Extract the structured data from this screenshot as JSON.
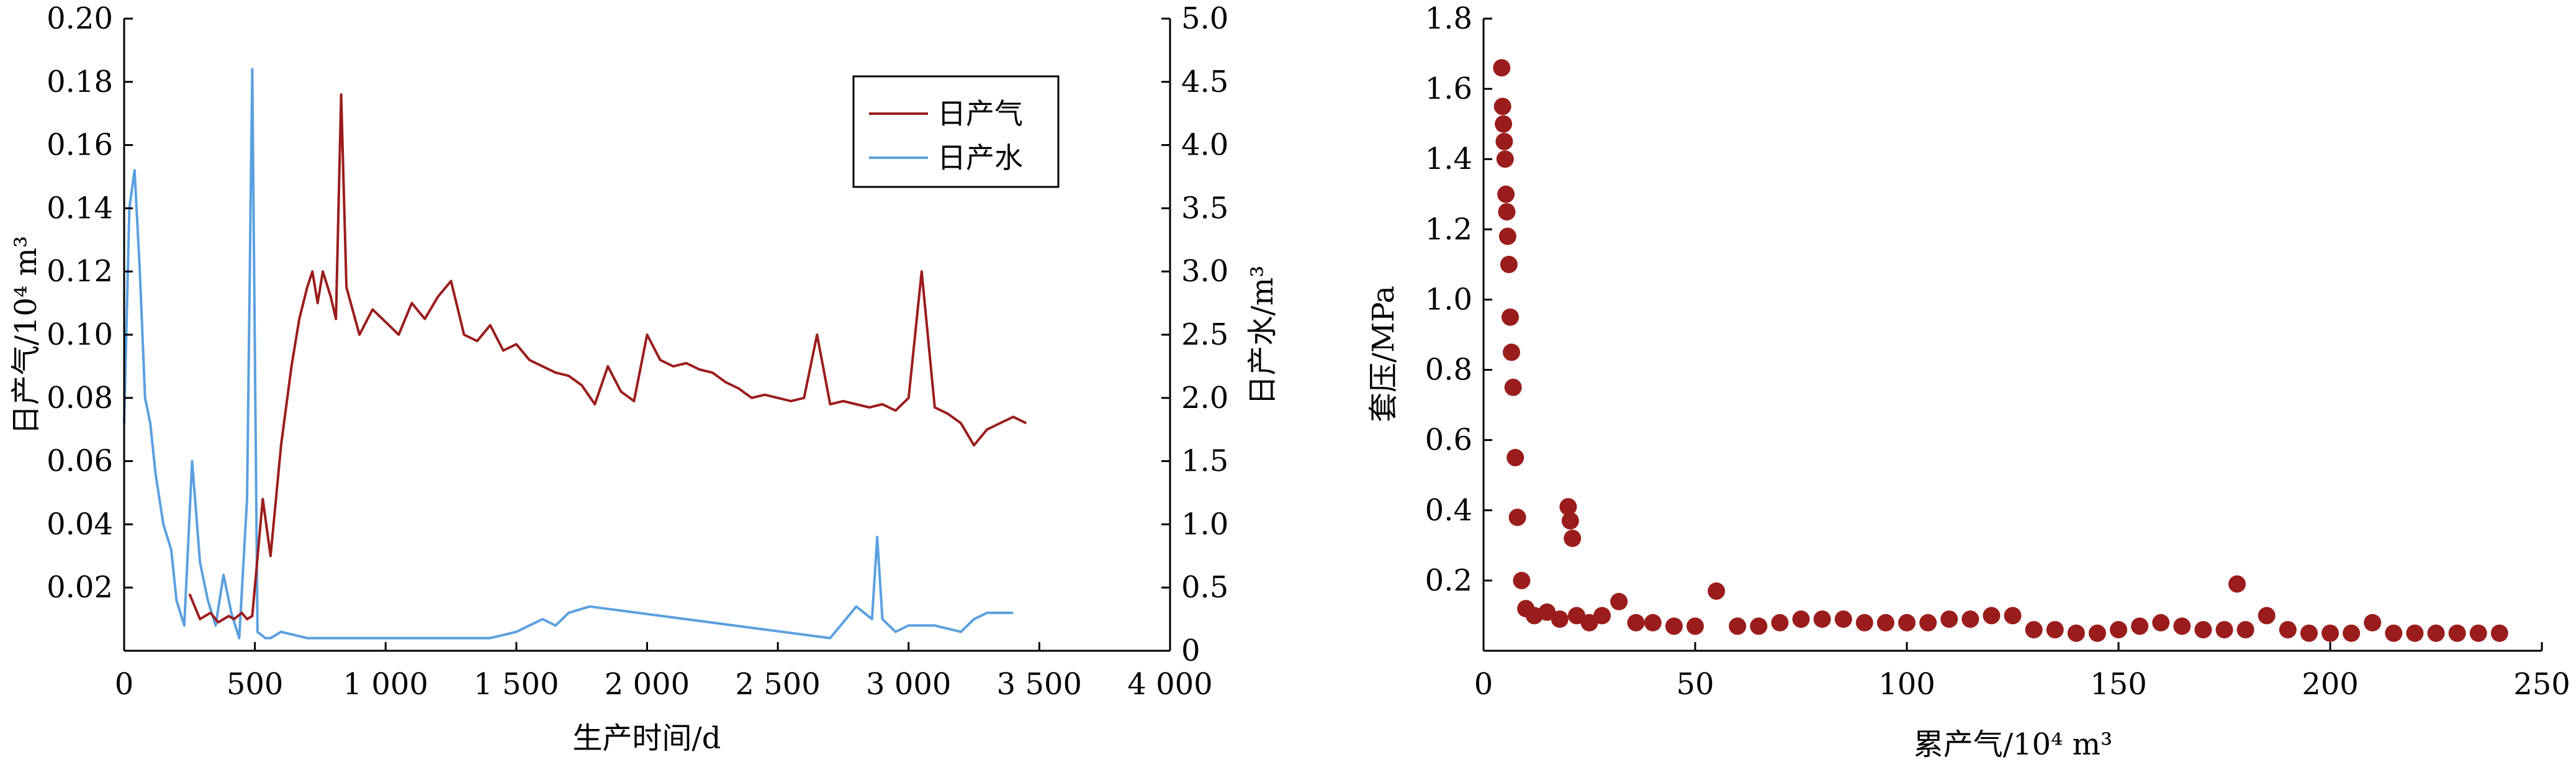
{
  "chart_data": [
    {
      "type": "line",
      "xlabel": "生产时间/d",
      "ylabel_left": "日产气/10⁴ m³",
      "ylabel_right": "日产水/m³",
      "xlim": [
        0,
        4000
      ],
      "ylim_left": [
        0,
        0.2
      ],
      "ylim_right": [
        0,
        5.0
      ],
      "x_ticks": [
        "0",
        "500",
        "1 000",
        "1 500",
        "2 000",
        "2 500",
        "3 000",
        "3 500",
        "4 000"
      ],
      "y_left_ticks": [
        "0.02",
        "0.04",
        "0.06",
        "0.08",
        "0.10",
        "0.12",
        "0.14",
        "0.16",
        "0.18",
        "0.20"
      ],
      "y_right_ticks": [
        "0",
        "0.5",
        "1.0",
        "1.5",
        "2.0",
        "2.5",
        "3.0",
        "3.5",
        "4.0",
        "4.5",
        "5.0"
      ],
      "legend_position": "top-right",
      "colors": {
        "gas": "#9b1c1c",
        "water": "#5aa0e0"
      },
      "series": [
        {
          "name": "日产气",
          "axis": "left",
          "x": [
            250,
            290,
            330,
            360,
            400,
            420,
            450,
            470,
            490,
            530,
            560,
            600,
            640,
            670,
            700,
            720,
            740,
            760,
            790,
            810,
            830,
            850,
            900,
            950,
            1000,
            1050,
            1100,
            1150,
            1200,
            1250,
            1300,
            1350,
            1400,
            1450,
            1500,
            1550,
            1600,
            1650,
            1700,
            1750,
            1800,
            1850,
            1900,
            1950,
            2000,
            2050,
            2100,
            2150,
            2200,
            2250,
            2300,
            2350,
            2400,
            2450,
            2500,
            2550,
            2600,
            2650,
            2700,
            2750,
            2800,
            2850,
            2900,
            2950,
            3000,
            3050,
            3100,
            3150,
            3200,
            3250,
            3300,
            3350,
            3400,
            3450
          ],
          "y": [
            0.018,
            0.01,
            0.012,
            0.009,
            0.011,
            0.01,
            0.012,
            0.01,
            0.011,
            0.048,
            0.03,
            0.065,
            0.09,
            0.105,
            0.115,
            0.12,
            0.11,
            0.12,
            0.112,
            0.105,
            0.176,
            0.115,
            0.1,
            0.108,
            0.104,
            0.1,
            0.11,
            0.105,
            0.112,
            0.117,
            0.1,
            0.098,
            0.103,
            0.095,
            0.097,
            0.092,
            0.09,
            0.088,
            0.087,
            0.084,
            0.078,
            0.09,
            0.082,
            0.079,
            0.1,
            0.092,
            0.09,
            0.091,
            0.089,
            0.088,
            0.085,
            0.083,
            0.08,
            0.081,
            0.08,
            0.079,
            0.08,
            0.1,
            0.078,
            0.079,
            0.078,
            0.077,
            0.078,
            0.076,
            0.08,
            0.12,
            0.077,
            0.075,
            0.072,
            0.065,
            0.07,
            0.072,
            0.074,
            0.072
          ]
        },
        {
          "name": "日产水",
          "axis": "right",
          "x": [
            0,
            20,
            40,
            60,
            80,
            100,
            120,
            150,
            180,
            200,
            230,
            260,
            290,
            320,
            350,
            380,
            410,
            440,
            470,
            490,
            510,
            540,
            560,
            600,
            700,
            800,
            900,
            1000,
            1100,
            1200,
            1300,
            1400,
            1500,
            1550,
            1600,
            1650,
            1700,
            1780,
            2700,
            2800,
            2860,
            2880,
            2900,
            2950,
            3000,
            3050,
            3100,
            3200,
            3250,
            3300,
            3400
          ],
          "y": [
            1.8,
            3.5,
            3.8,
            3.0,
            2.0,
            1.8,
            1.4,
            1.0,
            0.8,
            0.4,
            0.2,
            1.5,
            0.7,
            0.4,
            0.2,
            0.6,
            0.3,
            0.1,
            1.2,
            4.6,
            0.15,
            0.1,
            0.1,
            0.15,
            0.1,
            0.1,
            0.1,
            0.1,
            0.1,
            0.1,
            0.1,
            0.1,
            0.15,
            0.2,
            0.25,
            0.2,
            0.3,
            0.35,
            0.1,
            0.35,
            0.25,
            0.9,
            0.25,
            0.15,
            0.2,
            0.2,
            0.2,
            0.15,
            0.25,
            0.3,
            0.3
          ]
        }
      ]
    },
    {
      "type": "scatter",
      "xlabel": "累产气/10⁴ m³",
      "ylabel": "套压/MPa",
      "xlim": [
        0,
        250
      ],
      "ylim": [
        0,
        1.8
      ],
      "x_ticks": [
        "0",
        "50",
        "100",
        "150",
        "200",
        "250"
      ],
      "y_ticks": [
        "0.2",
        "0.4",
        "0.6",
        "0.8",
        "1.0",
        "1.2",
        "1.4",
        "1.6",
        "1.8"
      ],
      "colors": {
        "points": "#9b1c1c"
      },
      "series": [
        {
          "x": [
            4.3,
            4.5,
            4.7,
            4.9,
            5.1,
            5.3,
            5.5,
            5.7,
            6.0,
            6.3,
            6.6,
            7.0,
            7.5,
            8.0,
            9.0,
            10,
            12,
            15,
            18,
            20,
            20.5,
            21,
            22,
            25,
            28,
            32,
            36,
            40,
            45,
            50,
            55,
            60,
            65,
            70,
            75,
            80,
            85,
            90,
            95,
            100,
            105,
            110,
            115,
            120,
            125,
            130,
            135,
            140,
            145,
            150,
            155,
            160,
            165,
            170,
            175,
            178,
            180,
            185,
            190,
            195,
            200,
            205,
            210,
            215,
            220,
            225,
            230,
            235,
            240
          ],
          "y": [
            1.66,
            1.55,
            1.5,
            1.45,
            1.4,
            1.3,
            1.25,
            1.18,
            1.1,
            0.95,
            0.85,
            0.75,
            0.55,
            0.38,
            0.2,
            0.12,
            0.1,
            0.11,
            0.09,
            0.41,
            0.37,
            0.32,
            0.1,
            0.08,
            0.1,
            0.14,
            0.08,
            0.08,
            0.07,
            0.07,
            0.17,
            0.07,
            0.07,
            0.08,
            0.09,
            0.09,
            0.09,
            0.08,
            0.08,
            0.08,
            0.08,
            0.09,
            0.09,
            0.1,
            0.1,
            0.06,
            0.06,
            0.05,
            0.05,
            0.06,
            0.07,
            0.08,
            0.07,
            0.06,
            0.06,
            0.19,
            0.06,
            0.1,
            0.06,
            0.05,
            0.05,
            0.05,
            0.08,
            0.05,
            0.05,
            0.05,
            0.05,
            0.05,
            0.05
          ]
        }
      ]
    }
  ]
}
